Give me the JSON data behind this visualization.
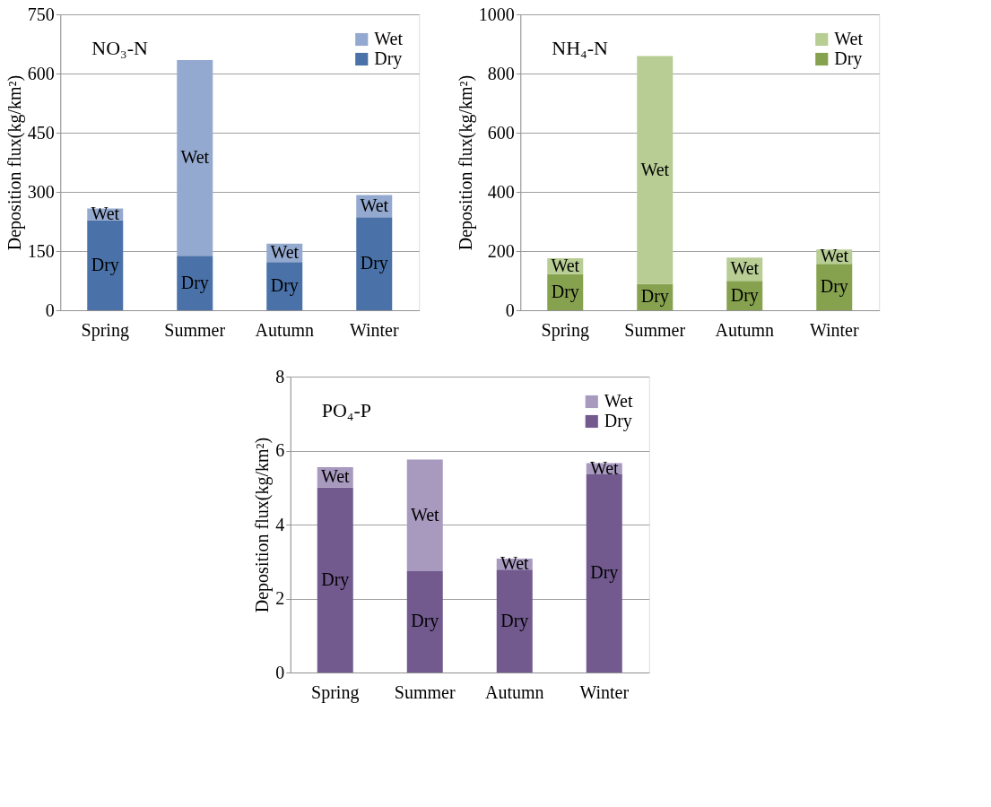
{
  "chart_data": [
    {
      "type": "bar",
      "title": "NO₃-N",
      "ylabel": "Deposition flux(kg/km²)",
      "categories": [
        "Spring",
        "Summer",
        "Autumn",
        "Winter"
      ],
      "stacked": true,
      "ylim": [
        0,
        750
      ],
      "yticks": [
        0,
        150,
        300,
        450,
        600,
        750
      ],
      "grid": "y",
      "legend": "top right",
      "series": [
        {
          "name": "Dry",
          "color": "#4a72a8",
          "values": [
            228,
            138,
            122,
            236
          ]
        },
        {
          "name": "Wet",
          "color": "#94a9cf",
          "values": [
            30,
            496,
            47,
            56
          ]
        }
      ]
    },
    {
      "type": "bar",
      "title": "NH₄-N",
      "ylabel": "Deposition flux(kg/km²)",
      "categories": [
        "Spring",
        "Summer",
        "Autumn",
        "Winter"
      ],
      "stacked": true,
      "ylim": [
        0,
        1000
      ],
      "yticks": [
        0,
        200,
        400,
        600,
        800,
        1000
      ],
      "grid": "y",
      "legend": "top right",
      "series": [
        {
          "name": "Dry",
          "color": "#86a24e",
          "values": [
            122,
            89,
            99,
            157
          ]
        },
        {
          "name": "Wet",
          "color": "#b7cd94",
          "values": [
            54,
            770,
            79,
            48
          ]
        }
      ]
    },
    {
      "type": "bar",
      "title": "PO₄-P",
      "ylabel": "Deposition flux(kg/km²)",
      "categories": [
        "Spring",
        "Summer",
        "Autumn",
        "Winter"
      ],
      "stacked": true,
      "ylim": [
        0,
        8
      ],
      "yticks": [
        0,
        2,
        4,
        6,
        8
      ],
      "grid": "y",
      "legend": "top right",
      "series": [
        {
          "name": "Dry",
          "color": "#725a8f",
          "values": [
            5.0,
            2.74,
            2.78,
            5.36
          ]
        },
        {
          "name": "Wet",
          "color": "#a899bf",
          "values": [
            0.55,
            3.02,
            0.3,
            0.3
          ]
        }
      ]
    }
  ]
}
